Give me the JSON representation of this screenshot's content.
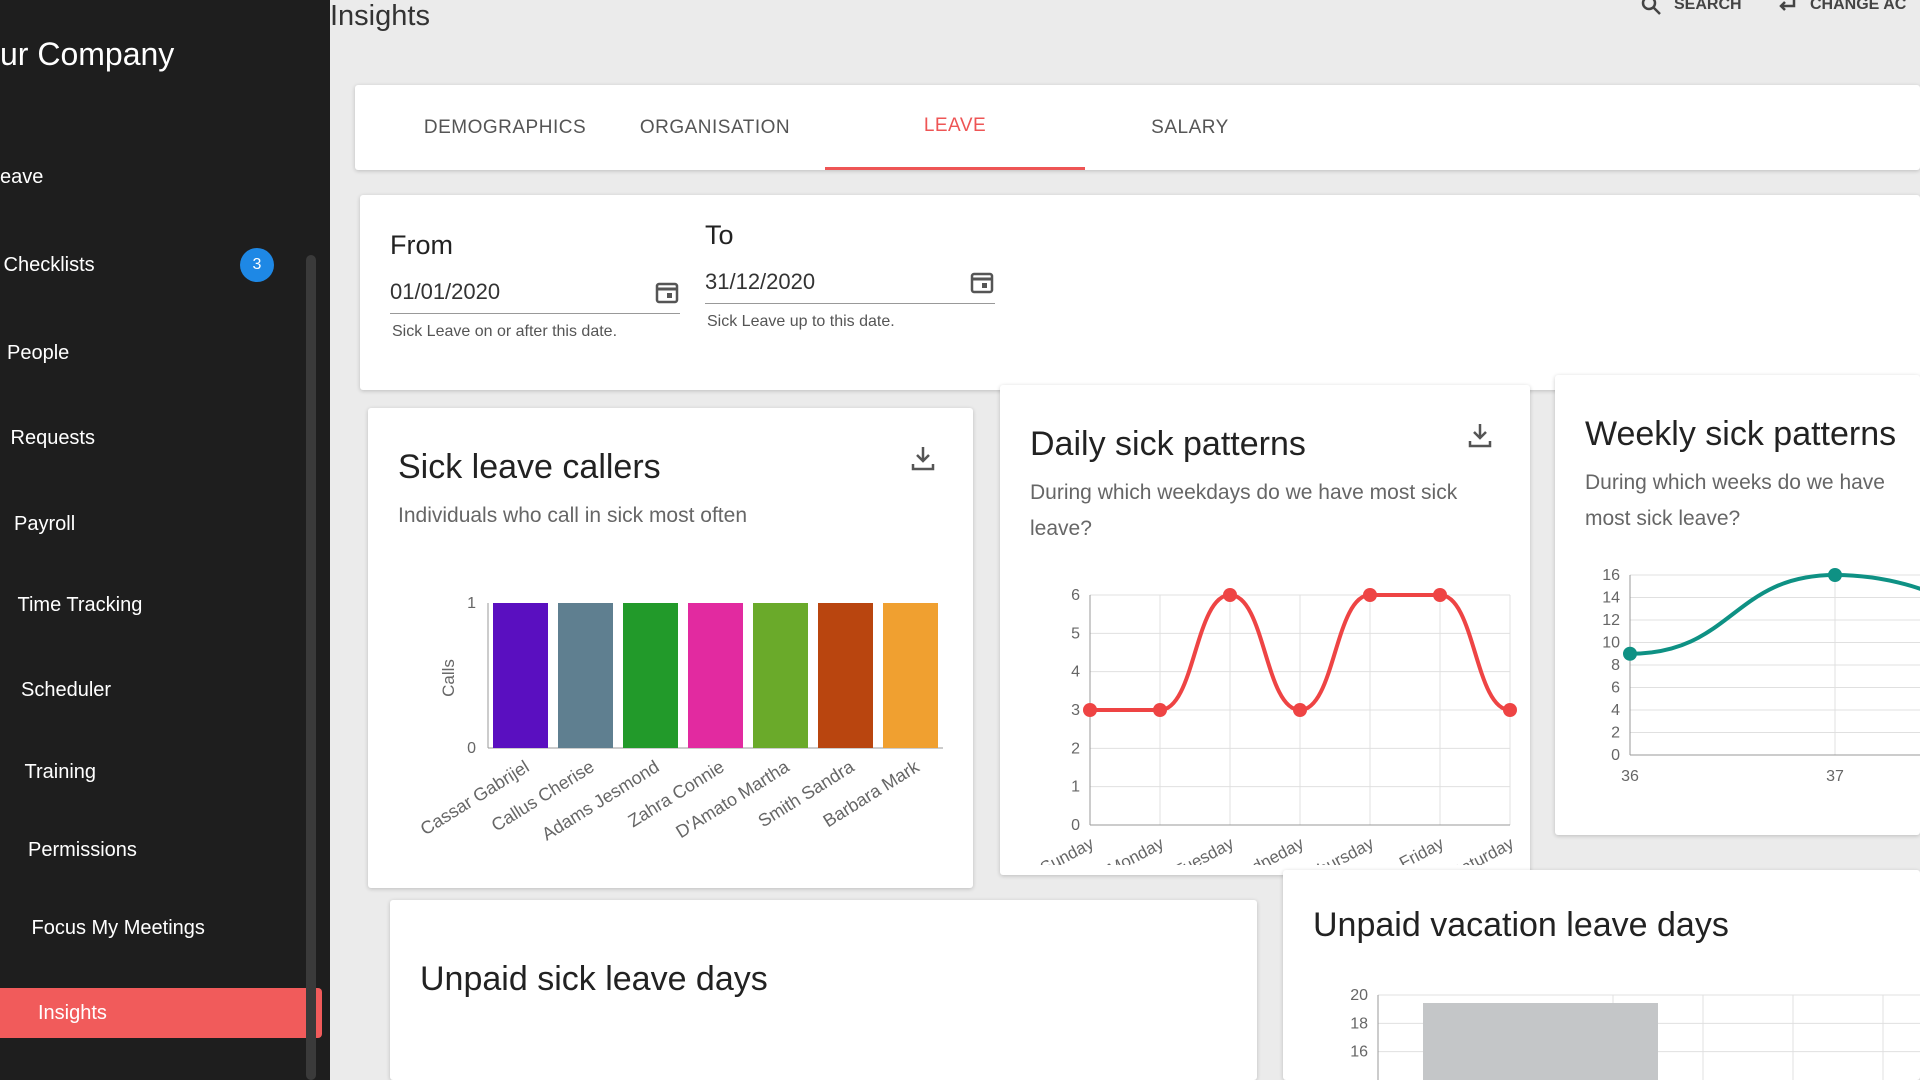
{
  "sidebar": {
    "company": "ur Company",
    "items": [
      {
        "label": "eave"
      },
      {
        "label": "Checklists",
        "badge": "3"
      },
      {
        "label": "People"
      },
      {
        "label": "Requests"
      },
      {
        "label": "Payroll"
      },
      {
        "label": "Time Tracking"
      },
      {
        "label": "Scheduler"
      },
      {
        "label": "Training"
      },
      {
        "label": "Permissions"
      },
      {
        "label": "Focus My Meetings"
      },
      {
        "label": "Insights",
        "active": true
      }
    ]
  },
  "header": {
    "title": "Insights",
    "search": "SEARCH",
    "change": "CHANGE AC"
  },
  "tabs": [
    {
      "label": "DEMOGRAPHICS"
    },
    {
      "label": "ORGANISATION"
    },
    {
      "label": "LEAVE",
      "active": true
    },
    {
      "label": "SALARY"
    }
  ],
  "filters": {
    "from": {
      "label": "From",
      "value": "01/01/2020",
      "helper": "Sick Leave on or after this date."
    },
    "to": {
      "label": "To",
      "value": "31/12/2020",
      "helper": "Sick Leave up to this date."
    }
  },
  "cards": {
    "callers": {
      "title": "Sick leave callers",
      "subtitle": "Individuals who call in sick most often"
    },
    "daily": {
      "title": "Daily sick patterns",
      "subtitle": "During which weekdays do we have most sick leave?"
    },
    "weekly": {
      "title": "Weekly sick patterns",
      "subtitle": "During which weeks do we have most sick leave?"
    },
    "unpaid_sick": {
      "title": "Unpaid sick leave days"
    },
    "unpaid_vacation": {
      "title": "Unpaid vacation leave days"
    }
  },
  "colors": {
    "accent": "#f15b5b",
    "daily_line": "#ee4444",
    "weekly_line": "#0e9184",
    "sidebar": "#1e1e1e",
    "badge": "#1e88e5"
  },
  "chart_data": [
    {
      "type": "bar",
      "ylabel": "Calls",
      "ylim": [
        0,
        1
      ],
      "yticks": [
        "0",
        "1"
      ],
      "categories": [
        "Cassar Gabrijel",
        "Callus Cherise",
        "Adams Jesmond",
        "Zahra Connie",
        "D'Amato Martha",
        "Smith Sandra",
        "Barbara Mark"
      ],
      "values": [
        1,
        1,
        1,
        1,
        1,
        1,
        1
      ],
      "colors": [
        "#5a0fc0",
        "#5f7f90",
        "#229a2a",
        "#e22aa0",
        "#6aaa2a",
        "#b9450f",
        "#f0a030"
      ]
    },
    {
      "type": "line",
      "categories": [
        "Sunday",
        "Monday",
        "Tuesday",
        "Wedneday",
        "Thursday",
        "Friday",
        "Saturday"
      ],
      "values": [
        3,
        3,
        6,
        3,
        6,
        6,
        3
      ],
      "ylim": [
        0,
        6
      ],
      "yticks": [
        "0",
        "1",
        "2",
        "3",
        "4",
        "5",
        "6"
      ],
      "grid": true
    },
    {
      "type": "line",
      "categories": [
        "36",
        "37"
      ],
      "values": [
        9,
        16
      ],
      "ylim": [
        0,
        16
      ],
      "yticks": [
        "0",
        "2",
        "4",
        "6",
        "8",
        "10",
        "12",
        "14",
        "16"
      ],
      "grid": true
    },
    {
      "type": "bar",
      "ylim": [
        0,
        20
      ],
      "yticks": [
        "16",
        "18",
        "20"
      ],
      "grid": true
    }
  ]
}
